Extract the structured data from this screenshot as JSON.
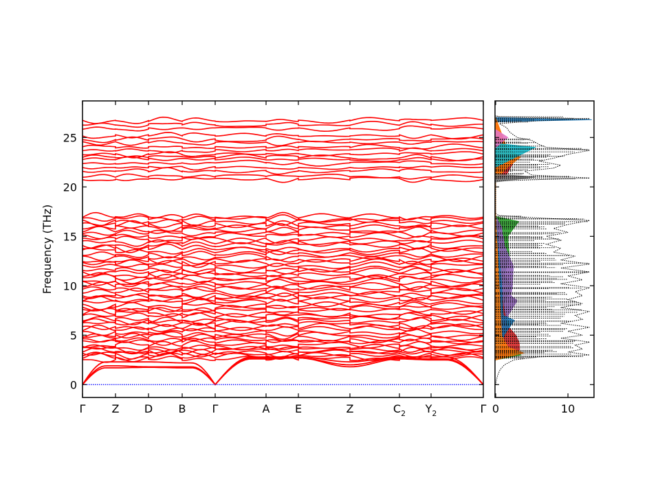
{
  "chart_data": [
    {
      "type": "line",
      "title": "",
      "ylabel": "Frequency (THz)",
      "xlabel": "",
      "ylim": [
        -1.3,
        28.7
      ],
      "yticks": [
        "0",
        "5",
        "10",
        "15",
        "20",
        "25"
      ],
      "ytick_values": [
        0,
        5,
        10,
        15,
        20,
        25
      ],
      "kpath": {
        "labels": [
          "Γ",
          "Z",
          "D",
          "B",
          "Γ",
          "A",
          "E",
          "Z",
          "C",
          "Y",
          "Γ"
        ],
        "subscripts": [
          "",
          "",
          "",
          "",
          "",
          "",
          "",
          "",
          "2",
          "2",
          ""
        ],
        "positions": [
          0,
          0.48,
          0.96,
          1.45,
          1.93,
          2.67,
          3.14,
          3.89,
          4.61,
          5.07,
          5.83
        ]
      },
      "band_color": "#ff0000",
      "zero_line_color": "#0000ff",
      "acoustic_branches": [
        [
          0,
          1.7,
          1.75,
          1.7,
          0,
          2.6,
          2.7,
          1.8,
          2.6,
          2.5,
          0
        ],
        [
          0,
          1.9,
          1.8,
          1.8,
          0,
          2.7,
          2.7,
          2.0,
          2.7,
          2.6,
          0
        ],
        [
          0,
          2.3,
          2.3,
          2.2,
          0,
          2.8,
          2.8,
          2.3,
          2.8,
          2.8,
          0
        ]
      ],
      "optical_band_levels_at_gamma": [
        2.6,
        2.8,
        3.0,
        3.2,
        3.4,
        3.6,
        3.8,
        4.0,
        4.3,
        4.5,
        4.8,
        5.0,
        5.3,
        5.6,
        5.8,
        6.1,
        6.4,
        6.6,
        6.9,
        7.2,
        7.5,
        7.7,
        8.0,
        8.3,
        8.6,
        8.9,
        9.1,
        9.4,
        9.7,
        10.0,
        10.3,
        10.6,
        10.8,
        11.1,
        11.4,
        11.7,
        12.0,
        12.3,
        12.6,
        12.9,
        13.2,
        13.5,
        13.8,
        14.1,
        14.4,
        14.7,
        15.0,
        15.3,
        15.6,
        15.9,
        16.2,
        16.5,
        16.8,
        17.0,
        20.8,
        21.0,
        21.6,
        22.0,
        22.4,
        22.8,
        23.0,
        23.3,
        23.7,
        24.0,
        24.5,
        24.8,
        25.2,
        25.9,
        26.3,
        26.7
      ]
    },
    {
      "type": "area",
      "xlabel": "",
      "ylabel": "",
      "xlim": [
        0,
        13.7
      ],
      "xticks": [
        "0",
        "10"
      ],
      "xtick_values": [
        0,
        10
      ],
      "total_dos": {
        "style": "dotted",
        "color": "#000000",
        "points": [
          [
            0,
            0
          ],
          [
            0.5,
            0.1
          ],
          [
            1,
            0.3
          ],
          [
            1.5,
            0.6
          ],
          [
            2,
            1.2
          ],
          [
            2.5,
            2.5
          ],
          [
            2.8,
            6
          ],
          [
            3,
            13
          ],
          [
            3.3,
            10
          ],
          [
            3.6,
            12
          ],
          [
            4,
            11
          ],
          [
            4.3,
            13
          ],
          [
            4.7,
            9
          ],
          [
            5,
            12
          ],
          [
            5.4,
            10
          ],
          [
            5.8,
            13
          ],
          [
            6.2,
            9
          ],
          [
            6.6,
            12
          ],
          [
            7,
            11
          ],
          [
            7.4,
            13
          ],
          [
            7.8,
            9
          ],
          [
            8.2,
            12
          ],
          [
            8.6,
            10
          ],
          [
            9,
            12
          ],
          [
            9.4,
            11
          ],
          [
            9.8,
            13
          ],
          [
            10.2,
            9
          ],
          [
            10.6,
            12
          ],
          [
            11,
            10
          ],
          [
            11.4,
            13
          ],
          [
            11.8,
            9
          ],
          [
            12.2,
            13
          ],
          [
            12.6,
            9
          ],
          [
            13,
            11
          ],
          [
            13.4,
            8
          ],
          [
            13.8,
            9
          ],
          [
            14.2,
            7
          ],
          [
            14.6,
            9
          ],
          [
            15,
            7
          ],
          [
            15.4,
            10
          ],
          [
            15.8,
            8
          ],
          [
            16.2,
            10
          ],
          [
            16.6,
            13
          ],
          [
            16.9,
            5
          ],
          [
            17.1,
            0.5
          ],
          [
            17.3,
            0
          ],
          [
            20.6,
            0
          ],
          [
            20.9,
            13
          ],
          [
            21.2,
            5
          ],
          [
            21.6,
            4
          ],
          [
            21.9,
            8
          ],
          [
            22.2,
            9
          ],
          [
            22.6,
            6
          ],
          [
            22.9,
            8
          ],
          [
            23.3,
            10
          ],
          [
            23.7,
            13
          ],
          [
            24,
            7
          ],
          [
            24.3,
            6
          ],
          [
            24.7,
            5
          ],
          [
            25,
            3
          ],
          [
            25.5,
            2
          ],
          [
            26,
            1.5
          ],
          [
            26.4,
            0.5
          ],
          [
            26.7,
            6
          ],
          [
            26.9,
            13
          ],
          [
            27.1,
            0.5
          ],
          [
            27.2,
            0
          ]
        ]
      },
      "partial_dos": [
        {
          "color": "#2ca02c",
          "points": [
            [
              2.5,
              0
            ],
            [
              3,
              3.5
            ],
            [
              3.5,
              2
            ],
            [
              4,
              1
            ],
            [
              6,
              1.5
            ],
            [
              8,
              1.2
            ],
            [
              10,
              3
            ],
            [
              11,
              1.5
            ],
            [
              13,
              2
            ],
            [
              15,
              1.5
            ],
            [
              16.5,
              3.5
            ],
            [
              17,
              0
            ],
            [
              20.8,
              0
            ],
            [
              21,
              0.5
            ],
            [
              27,
              0
            ]
          ]
        },
        {
          "color": "#9467bd",
          "points": [
            [
              2.5,
              0
            ],
            [
              3,
              1
            ],
            [
              5,
              1.5
            ],
            [
              7,
              1.5
            ],
            [
              8.5,
              3.5
            ],
            [
              9,
              2.5
            ],
            [
              10,
              2
            ],
            [
              12,
              2.5
            ],
            [
              14,
              1.5
            ],
            [
              16,
              1
            ],
            [
              17,
              0
            ],
            [
              20.8,
              0
            ],
            [
              24.5,
              1
            ],
            [
              25,
              0
            ]
          ]
        },
        {
          "color": "#d62728",
          "points": [
            [
              2.5,
              0
            ],
            [
              3,
              2
            ],
            [
              3.5,
              3.5
            ],
            [
              4.2,
              3
            ],
            [
              5,
              2.5
            ],
            [
              6,
              1.5
            ],
            [
              8,
              1.2
            ],
            [
              10,
              0.8
            ],
            [
              17,
              0
            ],
            [
              20.8,
              0
            ],
            [
              21,
              1.5
            ],
            [
              22.8,
              2.5
            ],
            [
              23.5,
              2
            ],
            [
              27,
              0
            ]
          ]
        },
        {
          "color": "#1f77b4",
          "points": [
            [
              2.5,
              0
            ],
            [
              3,
              0.5
            ],
            [
              5,
              1.5
            ],
            [
              6.5,
              2.5
            ],
            [
              7,
              1
            ],
            [
              10,
              1
            ],
            [
              17,
              0
            ],
            [
              26.6,
              0
            ],
            [
              26.8,
              12.5
            ],
            [
              27,
              0
            ]
          ]
        },
        {
          "color": "#ff7f0e",
          "points": [
            [
              2.5,
              0
            ],
            [
              3.2,
              4
            ],
            [
              3.8,
              2
            ],
            [
              5,
              1
            ],
            [
              17,
              0
            ],
            [
              20.8,
              0
            ],
            [
              22,
              2
            ],
            [
              23,
              3
            ],
            [
              24,
              1.5
            ],
            [
              27,
              0
            ]
          ]
        },
        {
          "color": "#17becf",
          "points": [
            [
              22,
              0
            ],
            [
              24,
              4.5
            ],
            [
              24.4,
              0
            ]
          ]
        },
        {
          "color": "#e377c2",
          "points": [
            [
              24,
              0
            ],
            [
              25,
              1.5
            ],
            [
              25.8,
              0
            ]
          ]
        },
        {
          "color": "#7f7f7f",
          "points": [
            [
              20.5,
              0
            ],
            [
              21,
              5
            ],
            [
              21.3,
              0
            ]
          ]
        }
      ]
    }
  ]
}
